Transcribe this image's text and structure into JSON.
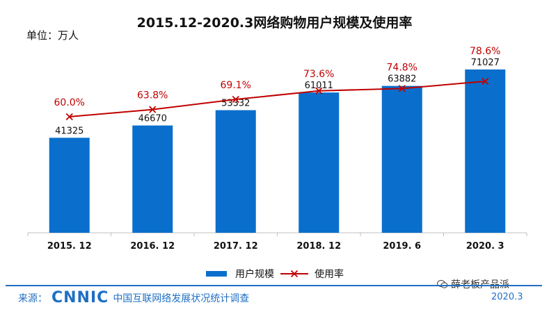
{
  "unit_label": "单位：万人",
  "source": {
    "label": "来源：",
    "logo_text": "CNNIC",
    "description": "中国互联网络发展状况统计调查",
    "date": "2020.3"
  },
  "watermark": {
    "account": "薛老板产品派",
    "icon": "wechat-icon"
  },
  "colors": {
    "bar": "#0a6fcc",
    "line": "#c00000",
    "accent": "#1f6fc4"
  },
  "chart_data": {
    "type": "bar",
    "title": "2015.12-2020.3网络购物用户规模及使用率",
    "categories": [
      "2015. 12",
      "2016. 12",
      "2017. 12",
      "2018. 12",
      "2019. 6",
      "2020. 3"
    ],
    "series": [
      {
        "name": "用户规模",
        "type": "bar",
        "values": [
          41325,
          46670,
          53332,
          61011,
          63882,
          71027
        ],
        "labels": [
          "41325",
          "46670",
          "53332",
          "61011",
          "63882",
          "71027"
        ]
      },
      {
        "name": "使用率",
        "type": "line",
        "values": [
          60.0,
          63.8,
          69.1,
          73.6,
          74.8,
          78.6
        ],
        "labels": [
          "60.0%",
          "63.8%",
          "69.1%",
          "73.6%",
          "74.8%",
          "78.6%"
        ]
      }
    ],
    "legend": [
      "用户规模",
      "使用率"
    ],
    "legend_position": "bottom",
    "grid": false
  }
}
